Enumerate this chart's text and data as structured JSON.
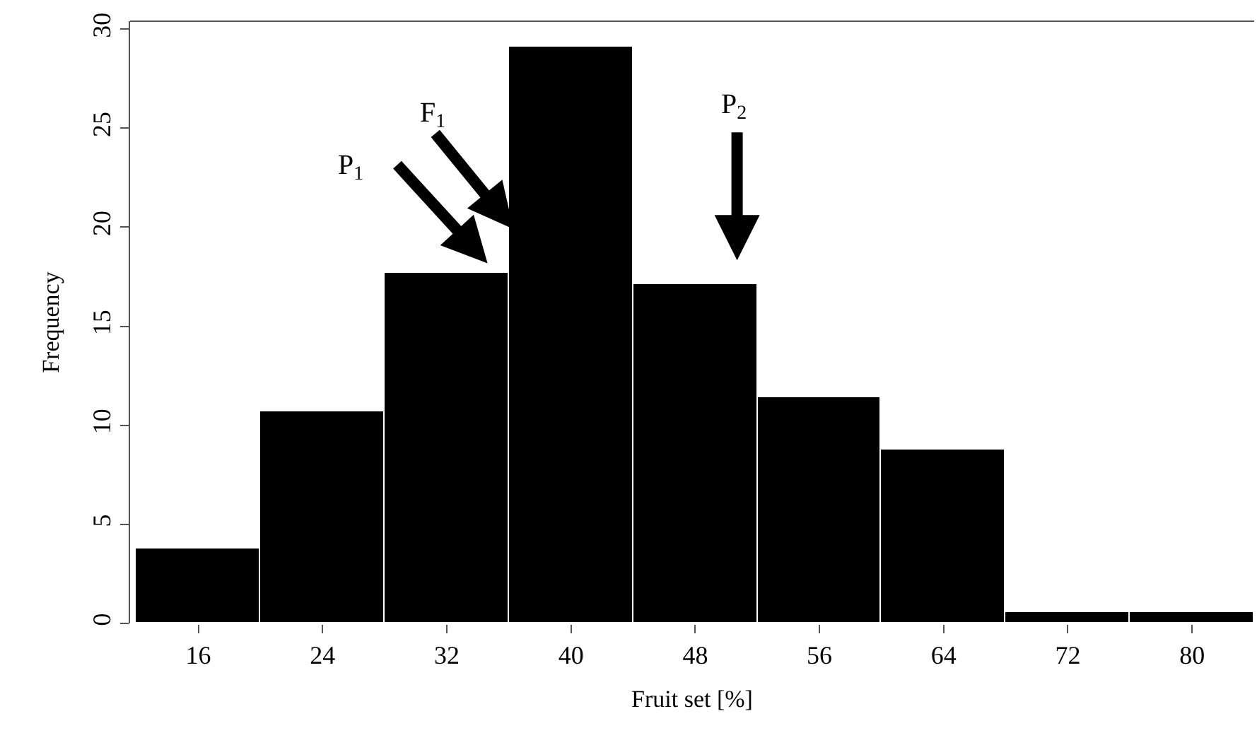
{
  "chart_data": {
    "type": "histogram",
    "xlabel": "Fruit set [%]",
    "ylabel": "Frequency",
    "bins": [
      12,
      20,
      28,
      36,
      44,
      52,
      60,
      68,
      76,
      84
    ],
    "values": [
      3.8,
      10.7,
      17.7,
      29.1,
      17.1,
      11.4,
      8.8,
      0.6,
      0.6
    ],
    "color": "#000000",
    "xlim": [
      11.6,
      84
    ],
    "xticks": [
      16,
      24,
      32,
      40,
      48,
      56,
      64,
      72,
      80
    ],
    "ylim": [
      0,
      30.4
    ],
    "yticks": [
      0,
      5,
      10,
      15,
      20,
      25,
      30
    ],
    "annotations": [
      "P$_{1}$",
      "F$_{1}$",
      "P$_{2}$"
    ]
  }
}
